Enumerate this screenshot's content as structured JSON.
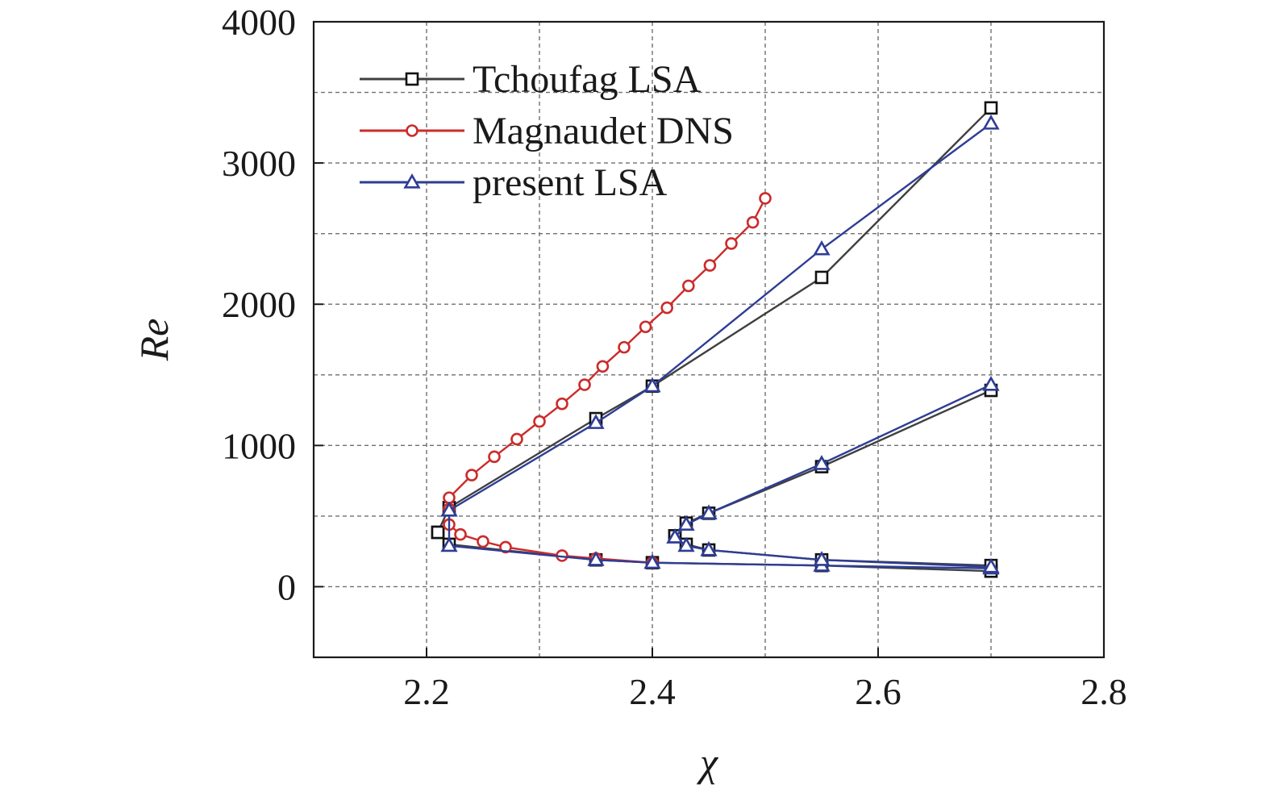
{
  "chart_data": {
    "type": "line",
    "xlabel": "χ",
    "ylabel": "Re",
    "xlim": [
      2.1,
      2.8
    ],
    "ylim": [
      -500,
      4000
    ],
    "xticks": [
      "2.2",
      "2.4",
      "2.6",
      "2.8"
    ],
    "yticks": [
      "0",
      "1000",
      "2000",
      "3000",
      "4000"
    ],
    "grid": true,
    "legend_position": "top-left",
    "series": [
      {
        "name": "Tchoufag LSA",
        "color": "#404040",
        "marker": "square",
        "segments": [
          [
            [
              2.21,
              385
            ],
            [
              2.22,
              560
            ],
            [
              2.35,
              1190
            ],
            [
              2.4,
              1420
            ],
            [
              2.55,
              2190
            ],
            [
              2.7,
              3390
            ]
          ],
          [
            [
              2.21,
              385
            ],
            [
              2.22,
              300
            ],
            [
              2.35,
              190
            ],
            [
              2.4,
              170
            ],
            [
              2.55,
              150
            ],
            [
              2.7,
              110
            ]
          ],
          [
            [
              2.42,
              360
            ],
            [
              2.43,
              450
            ],
            [
              2.45,
              520
            ],
            [
              2.55,
              850
            ],
            [
              2.7,
              1390
            ]
          ],
          [
            [
              2.42,
              360
            ],
            [
              2.43,
              300
            ],
            [
              2.45,
              260
            ],
            [
              2.55,
              190
            ],
            [
              2.7,
              150
            ]
          ]
        ]
      },
      {
        "name": "Magnaudet  DNS",
        "color": "#cc2b2b",
        "marker": "circle",
        "segments": [
          [
            [
              2.22,
              550
            ],
            [
              2.22,
              630
            ],
            [
              2.24,
              790
            ],
            [
              2.26,
              920
            ],
            [
              2.28,
              1045
            ],
            [
              2.3,
              1170
            ],
            [
              2.32,
              1295
            ],
            [
              2.34,
              1430
            ],
            [
              2.356,
              1560
            ],
            [
              2.375,
              1695
            ],
            [
              2.394,
              1840
            ],
            [
              2.413,
              1975
            ],
            [
              2.432,
              2130
            ],
            [
              2.451,
              2275
            ],
            [
              2.47,
              2430
            ],
            [
              2.489,
              2580
            ],
            [
              2.5,
              2750
            ]
          ],
          [
            [
              2.22,
              550
            ],
            [
              2.22,
              440
            ],
            [
              2.23,
              370
            ],
            [
              2.25,
              320
            ],
            [
              2.27,
              280
            ],
            [
              2.32,
              220
            ],
            [
              2.35,
              200
            ],
            [
              2.4,
              170
            ]
          ]
        ]
      },
      {
        "name": "present LSA",
        "color": "#2e3d94",
        "marker": "triangle",
        "segments": [
          [
            [
              2.22,
              540
            ],
            [
              2.35,
              1160
            ],
            [
              2.4,
              1420
            ],
            [
              2.55,
              2390
            ],
            [
              2.7,
              3280
            ]
          ],
          [
            [
              2.22,
              540
            ],
            [
              2.22,
              290
            ],
            [
              2.35,
              190
            ],
            [
              2.4,
              170
            ],
            [
              2.55,
              150
            ],
            [
              2.7,
              130
            ]
          ],
          [
            [
              2.42,
              350
            ],
            [
              2.43,
              440
            ],
            [
              2.45,
              520
            ],
            [
              2.55,
              870
            ],
            [
              2.7,
              1430
            ]
          ],
          [
            [
              2.42,
              350
            ],
            [
              2.43,
              290
            ],
            [
              2.45,
              260
            ],
            [
              2.55,
              190
            ],
            [
              2.7,
              140
            ]
          ]
        ]
      }
    ]
  }
}
